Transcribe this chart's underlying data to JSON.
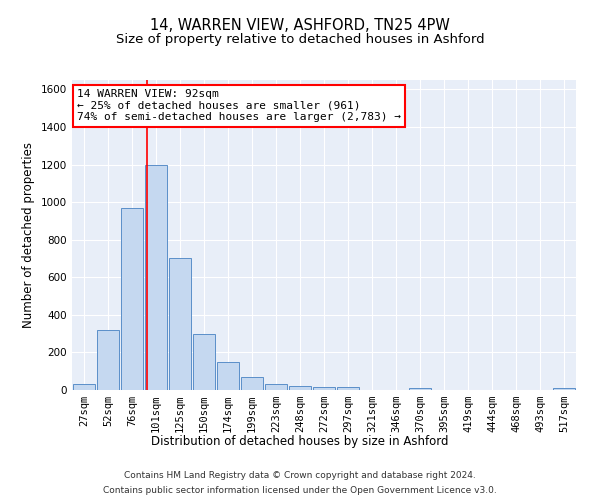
{
  "title1": "14, WARREN VIEW, ASHFORD, TN25 4PW",
  "title2": "Size of property relative to detached houses in Ashford",
  "xlabel": "Distribution of detached houses by size in Ashford",
  "ylabel": "Number of detached properties",
  "categories": [
    "27sqm",
    "52sqm",
    "76sqm",
    "101sqm",
    "125sqm",
    "150sqm",
    "174sqm",
    "199sqm",
    "223sqm",
    "248sqm",
    "272sqm",
    "297sqm",
    "321sqm",
    "346sqm",
    "370sqm",
    "395sqm",
    "419sqm",
    "444sqm",
    "468sqm",
    "493sqm",
    "517sqm"
  ],
  "values": [
    30,
    320,
    970,
    1200,
    700,
    300,
    150,
    70,
    30,
    20,
    15,
    15,
    0,
    0,
    10,
    0,
    0,
    0,
    0,
    0,
    10
  ],
  "bar_color": "#c5d8f0",
  "bar_edge_color": "#5b8fc9",
  "annotation_text": "14 WARREN VIEW: 92sqm\n← 25% of detached houses are smaller (961)\n74% of semi-detached houses are larger (2,783) →",
  "annotation_box_color": "white",
  "annotation_box_edge_color": "red",
  "vline_color": "red",
  "vline_position": 2.64,
  "ylim": [
    0,
    1650
  ],
  "yticks": [
    0,
    200,
    400,
    600,
    800,
    1000,
    1200,
    1400,
    1600
  ],
  "background_color": "#e8eef8",
  "footer1": "Contains HM Land Registry data © Crown copyright and database right 2024.",
  "footer2": "Contains public sector information licensed under the Open Government Licence v3.0.",
  "title_fontsize": 10.5,
  "subtitle_fontsize": 9.5,
  "xlabel_fontsize": 8.5,
  "ylabel_fontsize": 8.5,
  "tick_fontsize": 7.5,
  "annotation_fontsize": 8,
  "footer_fontsize": 6.5,
  "figwidth": 6.0,
  "figheight": 5.0,
  "dpi": 100
}
